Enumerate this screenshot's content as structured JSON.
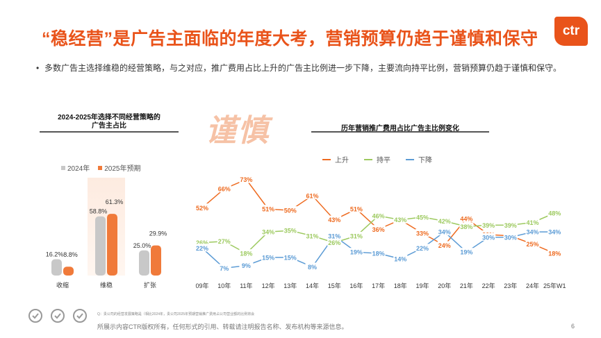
{
  "title": "“稳经营”是广告主面临的年度大考，营销预算仍趋于谨慎和保守",
  "logo_text": "ctr",
  "bullet": "多数广告主选择维稳的经营策略，与之对应，推广费用占比上升的广告主比例进一步下降，主要流向持平比例，营销预算仍趋于谨慎和保守。",
  "watermark": "谨慎",
  "colors": {
    "orange": "#ee6a1f",
    "green": "#9cc95e",
    "blue": "#5b9bd5",
    "bar_2024": "#c8c8c8",
    "bar_2025": "#f07a3a"
  },
  "chart_data": [
    {
      "type": "bar",
      "title_line1": "2024-2025年选择不同经营策略的",
      "title_line2": "广告主占比",
      "categories": [
        "收缩",
        "维稳",
        "扩张"
      ],
      "series": [
        {
          "name": "2024年",
          "values": [
            16.2,
            58.8,
            25.0
          ],
          "labels": [
            "16.2%",
            "58.8%",
            "25.0%"
          ]
        },
        {
          "name": "2025年预期",
          "values": [
            8.8,
            61.3,
            29.9
          ],
          "labels": [
            "8.8%",
            "61.3%",
            "29.9%"
          ]
        }
      ],
      "highlight_category": "维稳"
    },
    {
      "type": "line",
      "title": "历年营销推广费用占比广告主比例变化",
      "categories": [
        "09年",
        "10年",
        "11年",
        "12年",
        "13年",
        "14年",
        "15年",
        "16年",
        "17年",
        "18年",
        "19年",
        "20年",
        "21年",
        "22年",
        "23年",
        "24年",
        "25年W1"
      ],
      "series": [
        {
          "name": "上升",
          "values": [
            52,
            66,
            73,
            51,
            50,
            61,
            43,
            51,
            36,
            43,
            33,
            24,
            44,
            32,
            31,
            25,
            18
          ]
        },
        {
          "name": "持平",
          "values": [
            26,
            27,
            18,
            34,
            35,
            31,
            26,
            31,
            46,
            43,
            45,
            42,
            38,
            39,
            39,
            41,
            48
          ]
        },
        {
          "name": "下降",
          "values": [
            22,
            7,
            9,
            15,
            15,
            8,
            31,
            19,
            18,
            14,
            22,
            34,
            19,
            30,
            30,
            34,
            34
          ]
        }
      ],
      "ylim": [
        0,
        80
      ]
    }
  ],
  "footnote": "Q：贵公司的经营发展策略是（相比2024年，贵公司2025年预期营销推广费用占公司营业额的比例将会",
  "copyright": "所展示内容CTR版权所有，任何形式的引用、转载请注明报告名称、发布机构等来源信息。",
  "page_number": "6"
}
